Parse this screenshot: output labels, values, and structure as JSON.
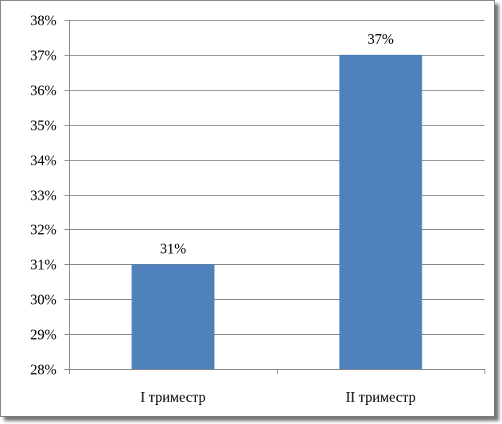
{
  "chart_data": {
    "type": "bar",
    "categories": [
      "I триместр",
      "II триместр"
    ],
    "values": [
      31,
      37
    ],
    "data_labels": [
      "31%",
      "37%"
    ],
    "y_tick_labels": [
      "28%",
      "29%",
      "30%",
      "31%",
      "32%",
      "33%",
      "34%",
      "35%",
      "36%",
      "37%",
      "38%"
    ],
    "ylim": [
      28,
      38
    ],
    "title": "",
    "xlabel": "",
    "ylabel": "",
    "grid": true,
    "legend": "none",
    "bar_color": "#4F81BD",
    "grid_color": "#868686"
  }
}
